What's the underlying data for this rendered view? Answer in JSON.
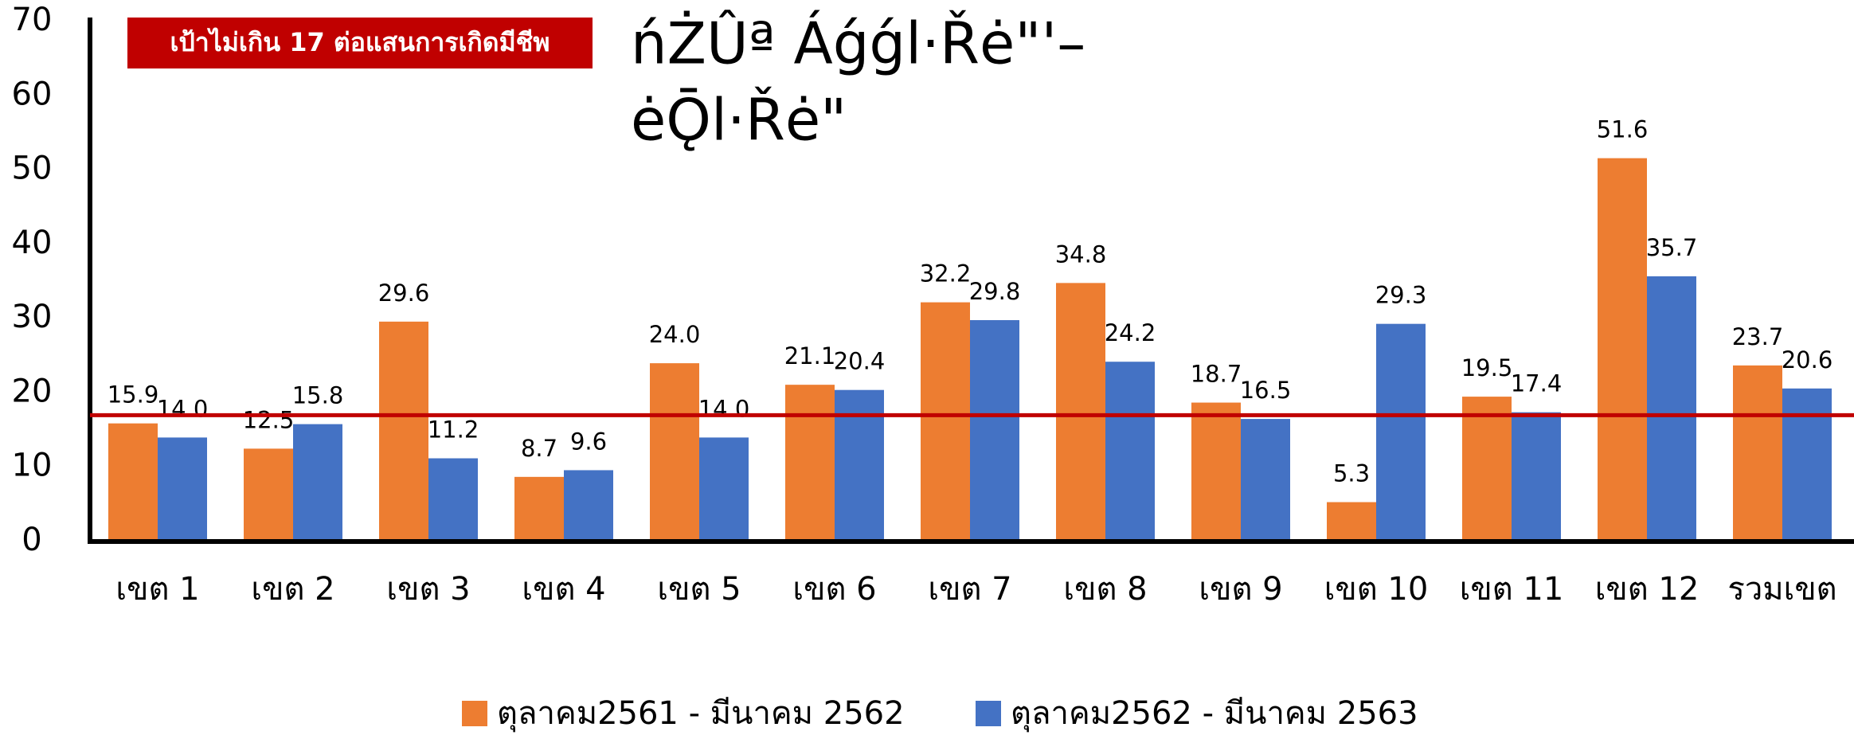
{
  "chart_data": {
    "type": "bar",
    "title": [
      "ńŻÛª Áǵǵl·Řė\"'–",
      "ėǬl·Řė\""
    ],
    "annotation": "เป้าไม่เกิน 17 ต่อแสนการเกิดมีชีพ",
    "target_line": 17,
    "target_color": "#c00000",
    "categories": [
      "เขต 1",
      "เขต 2",
      "เขต 3",
      "เขต 4",
      "เขต 5",
      "เขต 6",
      "เขต 7",
      "เขต 8",
      "เขต 9",
      "เขต 10",
      "เขต 11",
      "เขต 12",
      "รวมเขต"
    ],
    "series": [
      {
        "name": "ตุลาคม2561 - มีนาคม 2562",
        "color": "#ed7d31",
        "values": [
          15.9,
          12.5,
          29.6,
          8.7,
          24,
          21.1,
          32.2,
          34.8,
          18.7,
          5.3,
          19.5,
          51.6,
          23.7
        ],
        "value_labels": [
          "15.9",
          "12.5",
          "29.6",
          "8.7",
          "24.0",
          "21.1",
          "32.2",
          "34.8",
          "18.7",
          "5.3",
          "19.5",
          "51.6",
          "23.7"
        ]
      },
      {
        "name": "ตุลาคม2562 - มีนาคม 2563",
        "color": "#4472c4",
        "values": [
          14,
          15.8,
          11.2,
          9.6,
          14,
          20.4,
          29.8,
          24.2,
          16.5,
          29.3,
          17.4,
          35.7,
          20.6
        ],
        "value_labels": [
          "14.0",
          "15.8",
          "11.2",
          "9.6",
          "14.0",
          "20.4",
          "29.8",
          "24.2",
          "16.5",
          "29.3",
          "17.4",
          "35.7",
          "20.6"
        ]
      }
    ],
    "ylim": [
      0,
      70
    ],
    "yticks": [
      0,
      10,
      20,
      30,
      40,
      50,
      60,
      70
    ],
    "grid": false
  }
}
